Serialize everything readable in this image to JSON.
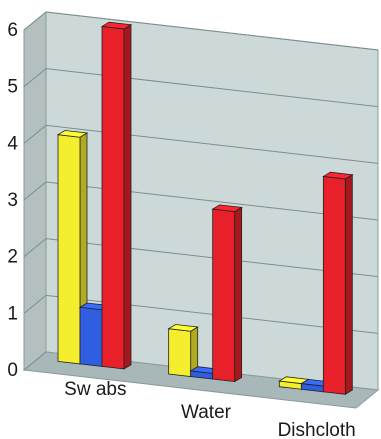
{
  "chart_data": {
    "type": "bar",
    "categories": [
      "Sw abs",
      "Water",
      "Dishcloth"
    ],
    "series": [
      {
        "values": [
          4.0,
          0.8,
          0.1
        ],
        "color": "#f5ee2e"
      },
      {
        "values": [
          1.0,
          0.1,
          0.1
        ],
        "color": "#2f5fe0"
      },
      {
        "values": [
          6.0,
          3.0,
          3.8
        ],
        "color": "#e8202a"
      }
    ],
    "ylim": [
      0,
      6
    ],
    "yticks": [
      "0",
      "1",
      "2",
      "3",
      "4",
      "5",
      "6"
    ],
    "grid": true,
    "style": "3d",
    "wall_color": "#cdd9d9",
    "floor_color": "#a8b8b8"
  }
}
